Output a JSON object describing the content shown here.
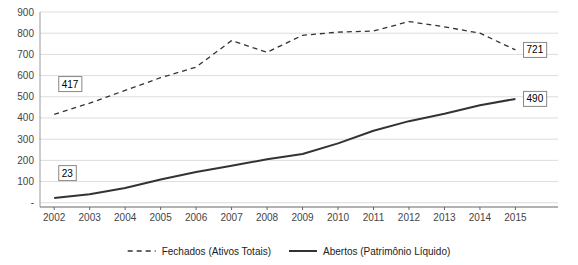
{
  "chart_data": {
    "type": "line",
    "x": [
      2002,
      2003,
      2004,
      2005,
      2006,
      2007,
      2008,
      2009,
      2010,
      2011,
      2012,
      2013,
      2014,
      2015
    ],
    "xlim": [
      2001.6,
      2016.2
    ],
    "xticks": [
      2002,
      2003,
      2004,
      2005,
      2006,
      2007,
      2008,
      2009,
      2010,
      2011,
      2012,
      2013,
      2014,
      2015
    ],
    "ylim": [
      -20,
      900
    ],
    "yticks": [
      {
        "value": 0,
        "label": "-"
      },
      100,
      200,
      300,
      400,
      500,
      600,
      700,
      800,
      900
    ],
    "grid": true,
    "legend": "bottom",
    "series": [
      {
        "name": "Fechados (Ativos Totais)",
        "color": "#333333",
        "line_style": "dashed",
        "values": [
          417,
          470,
          530,
          590,
          640,
          765,
          710,
          790,
          805,
          810,
          855,
          830,
          800,
          721
        ]
      },
      {
        "name": "Abertos (Patrimônio Líquido)",
        "color": "#333333",
        "line_style": "solid",
        "values": [
          23,
          40,
          70,
          110,
          145,
          175,
          205,
          230,
          280,
          340,
          385,
          420,
          460,
          490
        ]
      }
    ],
    "annotations": [
      {
        "text": "417",
        "x": 2002.1,
        "y": 560
      },
      {
        "text": "23",
        "x": 2002.1,
        "y": 140
      },
      {
        "text": "721",
        "x": 2015.2,
        "y": 721
      },
      {
        "text": "490",
        "x": 2015.2,
        "y": 490
      }
    ]
  }
}
